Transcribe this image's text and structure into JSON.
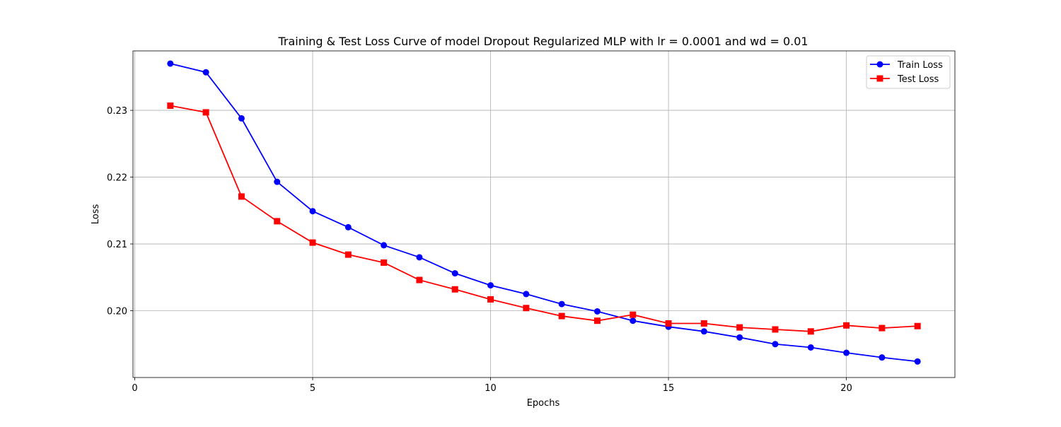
{
  "chart_data": {
    "type": "line",
    "title": "Training & Test Loss Curve of model Dropout Regularized MLP with lr = 0.0001 and wd = 0.01",
    "xlabel": "Epochs",
    "ylabel": "Loss",
    "xlim": [
      -0.05,
      23.05
    ],
    "ylim": [
      0.19,
      0.2389
    ],
    "grid": true,
    "legend_position": "top-right",
    "x_ticks": [
      0,
      5,
      10,
      15,
      20
    ],
    "x_tick_labels": [
      "0",
      "5",
      "10",
      "15",
      "20"
    ],
    "y_ticks": [
      0.2,
      0.21,
      0.22,
      0.23
    ],
    "y_tick_labels": [
      "0.20",
      "0.21",
      "0.22",
      "0.23"
    ],
    "x": [
      1,
      2,
      3,
      4,
      5,
      6,
      7,
      8,
      9,
      10,
      11,
      12,
      13,
      14,
      15,
      16,
      17,
      18,
      19,
      20,
      21,
      22
    ],
    "series": [
      {
        "name": "Train Loss",
        "color": "#0000ff",
        "marker": "circle",
        "values": [
          0.237,
          0.2357,
          0.2288,
          0.2193,
          0.2149,
          0.2125,
          0.2098,
          0.208,
          0.2056,
          0.2038,
          0.2025,
          0.201,
          0.1999,
          0.1985,
          0.1976,
          0.1969,
          0.196,
          0.195,
          0.1945,
          0.1937,
          0.193,
          0.1924
        ]
      },
      {
        "name": "Test Loss",
        "color": "#ff0000",
        "marker": "square",
        "values": [
          0.2307,
          0.2297,
          0.2171,
          0.2134,
          0.2102,
          0.2084,
          0.2072,
          0.2046,
          0.2032,
          0.2017,
          0.2004,
          0.1992,
          0.1985,
          0.1994,
          0.1981,
          0.1981,
          0.1975,
          0.1972,
          0.1969,
          0.1978,
          0.1974,
          0.1977
        ]
      }
    ]
  }
}
